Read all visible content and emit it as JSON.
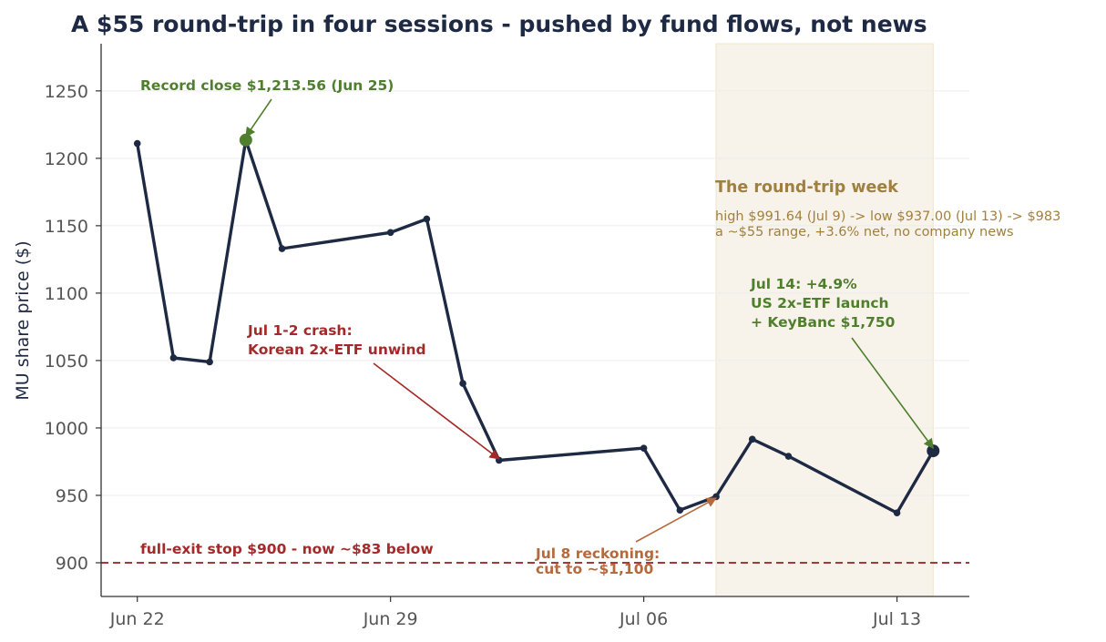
{
  "chart_data": {
    "type": "line",
    "title": "A $55 round-trip in four sessions - pushed by fund flows, not news",
    "ylabel": "MU share price ($)",
    "xlabel": "",
    "xlim": [
      "2025-06-21",
      "2025-07-15"
    ],
    "ylim": [
      875,
      1285
    ],
    "yticks": [
      900,
      950,
      1000,
      1050,
      1100,
      1150,
      1200,
      1250
    ],
    "xticks": [
      {
        "date": "2025-06-22",
        "label": "Jun 22"
      },
      {
        "date": "2025-06-29",
        "label": "Jun 29"
      },
      {
        "date": "2025-07-06",
        "label": "Jul 06"
      },
      {
        "date": "2025-07-13",
        "label": "Jul 13"
      }
    ],
    "grid": "horizontal",
    "line_color": "#1e2a44",
    "series": [
      {
        "points": [
          {
            "x": "2025-06-22",
            "y": 1211
          },
          {
            "x": "2025-06-23",
            "y": 1052
          },
          {
            "x": "2025-06-24",
            "y": 1049
          },
          {
            "x": "2025-06-25",
            "y": 1213.56
          },
          {
            "x": "2025-06-26",
            "y": 1133
          },
          {
            "x": "2025-06-29",
            "y": 1145
          },
          {
            "x": "2025-06-30",
            "y": 1155
          },
          {
            "x": "2025-07-01",
            "y": 1033
          },
          {
            "x": "2025-07-02",
            "y": 976
          },
          {
            "x": "2025-07-06",
            "y": 985
          },
          {
            "x": "2025-07-07",
            "y": 939
          },
          {
            "x": "2025-07-08",
            "y": 949
          },
          {
            "x": "2025-07-09",
            "y": 991.64
          },
          {
            "x": "2025-07-10",
            "y": 979
          },
          {
            "x": "2025-07-13",
            "y": 937
          },
          {
            "x": "2025-07-14",
            "y": 983
          }
        ]
      }
    ],
    "highlight_points": [
      {
        "x": "2025-06-25",
        "y": 1213.56,
        "color": "#4f7f2e"
      },
      {
        "x": "2025-07-14",
        "y": 983,
        "color": "#1e2a44"
      }
    ],
    "shaded_region": {
      "x_start": "2025-07-08",
      "x_end": "2025-07-14",
      "color": "#f8f3ea"
    },
    "reference_line": {
      "y": 900,
      "color": "#a33a3a",
      "style": "dashed"
    },
    "annotations": {
      "record": {
        "text": "Record close $1,213.56 (Jun 25)",
        "color": "#4f7f2e",
        "target": {
          "x": "2025-06-25",
          "y": 1216
        }
      },
      "crash": {
        "lines": [
          "Jul 1-2 crash:",
          "Korean 2x-ETF unwind"
        ],
        "color": "#a32a2a",
        "target": {
          "x": "2025-07-02",
          "y": 977
        }
      },
      "stop": {
        "text": "full-exit stop $900 - now ~$83 below",
        "color": "#a32a2a"
      },
      "reckoning": {
        "lines": [
          "Jul 8 reckoning:",
          "cut to ~$1,100"
        ],
        "color": "#b46a3c",
        "target": {
          "x": "2025-07-08",
          "y": 948
        }
      },
      "week_title": {
        "text": "The round-trip week",
        "color": "#a08040"
      },
      "week_detail": {
        "lines": [
          "high $991.64 (Jul 9) -> low $937.00 (Jul 13) -> $983",
          "a ~$55 range, +3.6% net, no company news"
        ],
        "color": "#a08040"
      },
      "launch": {
        "lines": [
          "Jul 14: +4.9%",
          "US 2x-ETF launch",
          "+ KeyBanc $1,750"
        ],
        "color": "#4f7f2e",
        "target": {
          "x": "2025-07-14",
          "y": 985
        }
      }
    }
  }
}
